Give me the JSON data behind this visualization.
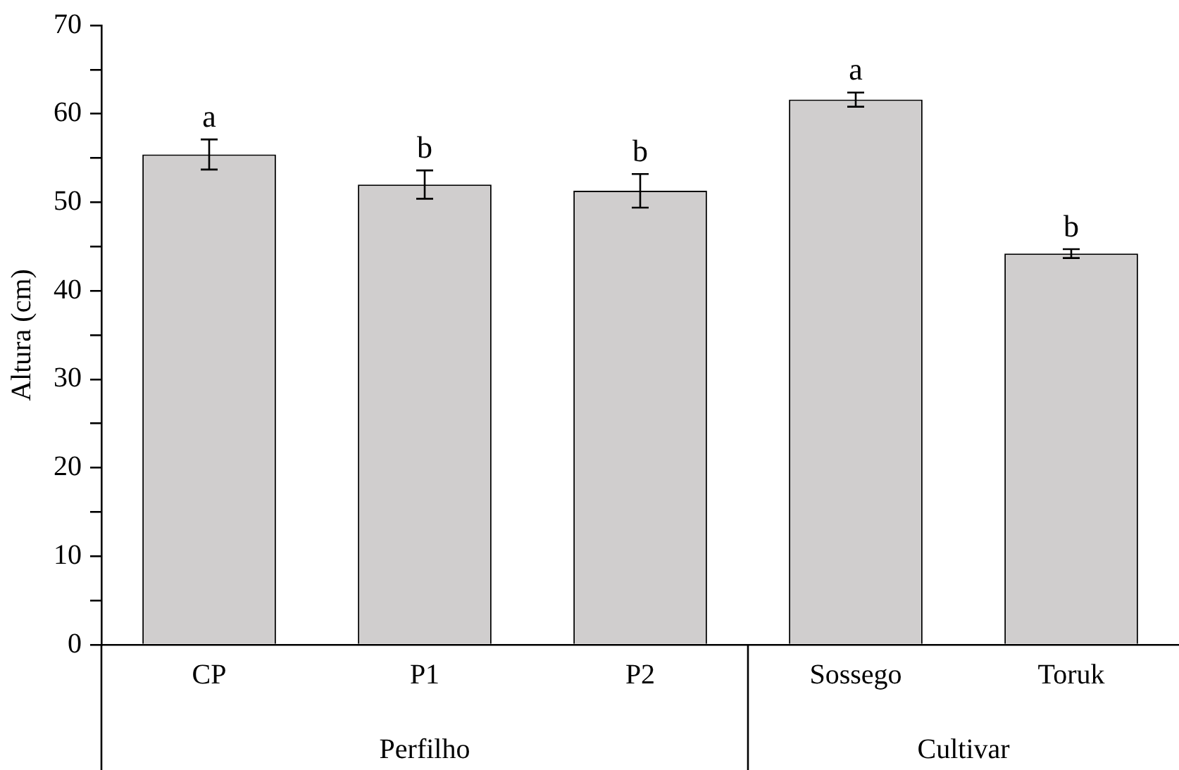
{
  "chart_data": {
    "type": "bar",
    "ylabel": "Altura (cm)",
    "categories": [
      "CP",
      "P1",
      "P2",
      "Sossego",
      "Toruk"
    ],
    "values": [
      55.4,
      52.0,
      51.3,
      61.6,
      44.2
    ],
    "errors": [
      1.7,
      1.6,
      1.9,
      0.8,
      0.5
    ],
    "value_labels": [
      "a",
      "b",
      "b",
      "a",
      "b"
    ],
    "color": "#d0cece",
    "ylim": [
      0,
      70
    ],
    "yticks": [
      0,
      {
        "value": 5,
        "label": null
      },
      10,
      {
        "value": 15,
        "label": null
      },
      20,
      {
        "value": 25,
        "label": null
      },
      30,
      {
        "value": 35,
        "label": null
      },
      40,
      {
        "value": 45,
        "label": null
      },
      50,
      {
        "value": 55,
        "label": null
      },
      60,
      {
        "value": 65,
        "label": null
      },
      70
    ],
    "annotations": [
      "Perfilho",
      "Cultivar"
    ],
    "grid": false,
    "legend": false
  }
}
